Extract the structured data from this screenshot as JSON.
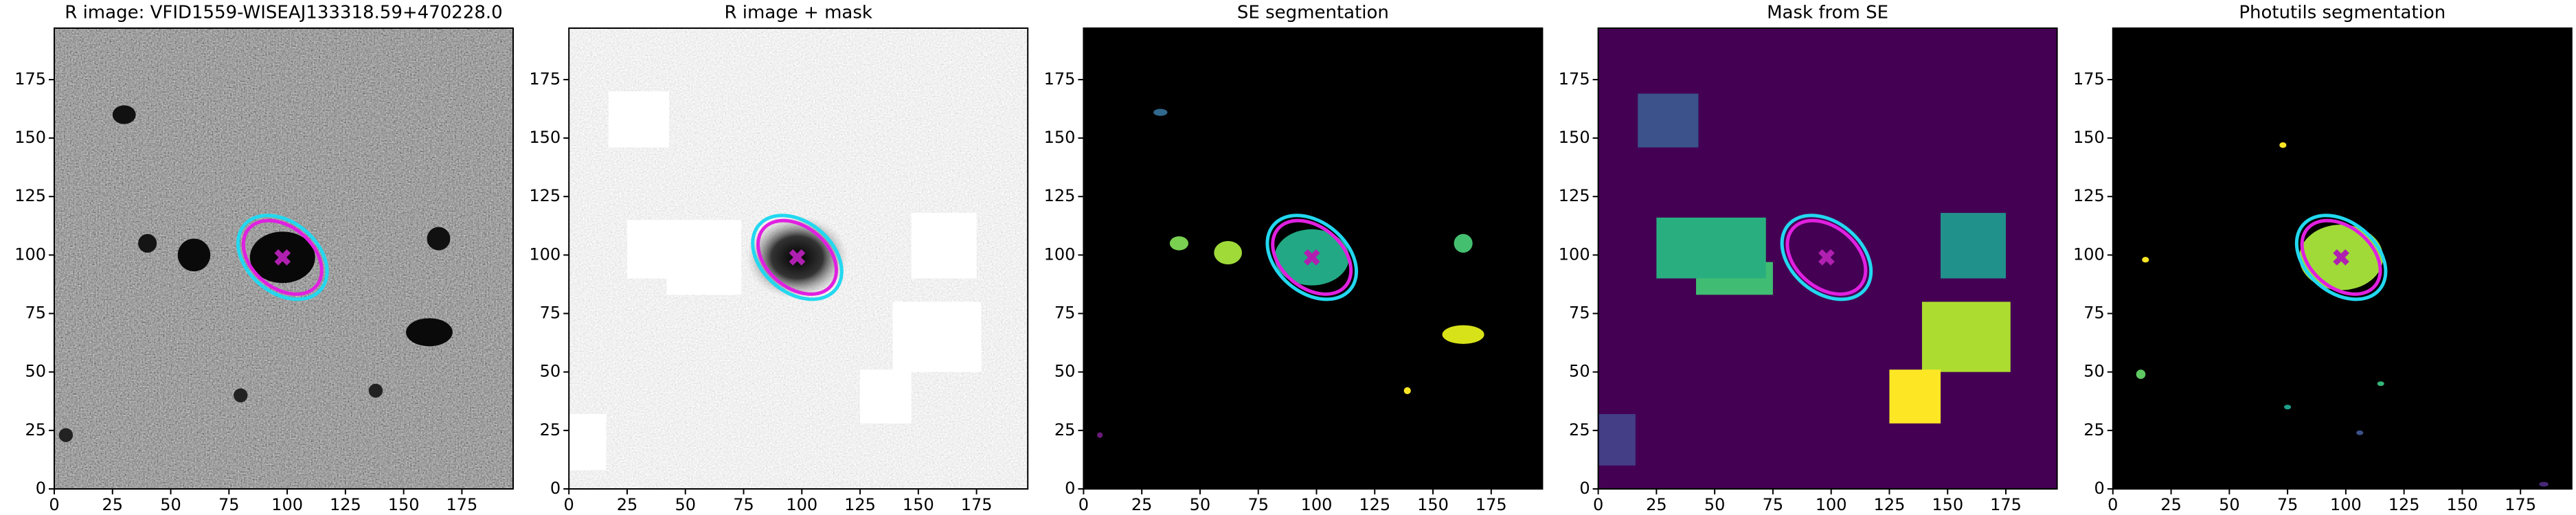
{
  "chart_data": [
    {
      "type": "image",
      "title": "R image: VFID1559-WISEAJ133318.59+470228.0",
      "xlim": [
        0,
        197
      ],
      "ylim": [
        0,
        197
      ],
      "xticks": [
        0,
        25,
        50,
        75,
        100,
        125,
        150,
        175
      ],
      "yticks": [
        0,
        25,
        50,
        75,
        100,
        125,
        150,
        175
      ],
      "center": [
        98,
        99
      ]
    },
    {
      "type": "image",
      "title": "R image + mask",
      "xlim": [
        0,
        197
      ],
      "ylim": [
        0,
        197
      ],
      "xticks": [
        0,
        25,
        50,
        75,
        100,
        125,
        150,
        175
      ],
      "yticks": [
        0,
        25,
        50,
        75,
        100,
        125,
        150,
        175
      ],
      "center": [
        98,
        99
      ]
    },
    {
      "type": "image",
      "title": "SE segmentation",
      "xlim": [
        0,
        197
      ],
      "ylim": [
        0,
        197
      ],
      "xticks": [
        0,
        25,
        50,
        75,
        100,
        125,
        150,
        175
      ],
      "yticks": [
        0,
        25,
        50,
        75,
        100,
        125,
        150,
        175
      ],
      "center": [
        98,
        99
      ]
    },
    {
      "type": "image",
      "title": "Mask from SE",
      "xlim": [
        0,
        197
      ],
      "ylim": [
        0,
        197
      ],
      "xticks": [
        0,
        25,
        50,
        75,
        100,
        125,
        150,
        175
      ],
      "yticks": [
        0,
        25,
        50,
        75,
        100,
        125,
        150,
        175
      ],
      "center": [
        98,
        99
      ]
    },
    {
      "type": "image",
      "title": "Photutils segmentation",
      "xlim": [
        0,
        197
      ],
      "ylim": [
        0,
        197
      ],
      "xticks": [
        0,
        25,
        50,
        75,
        100,
        125,
        150,
        175
      ],
      "yticks": [
        0,
        25,
        50,
        75,
        100,
        125,
        150,
        175
      ],
      "center": [
        98,
        99
      ]
    }
  ]
}
